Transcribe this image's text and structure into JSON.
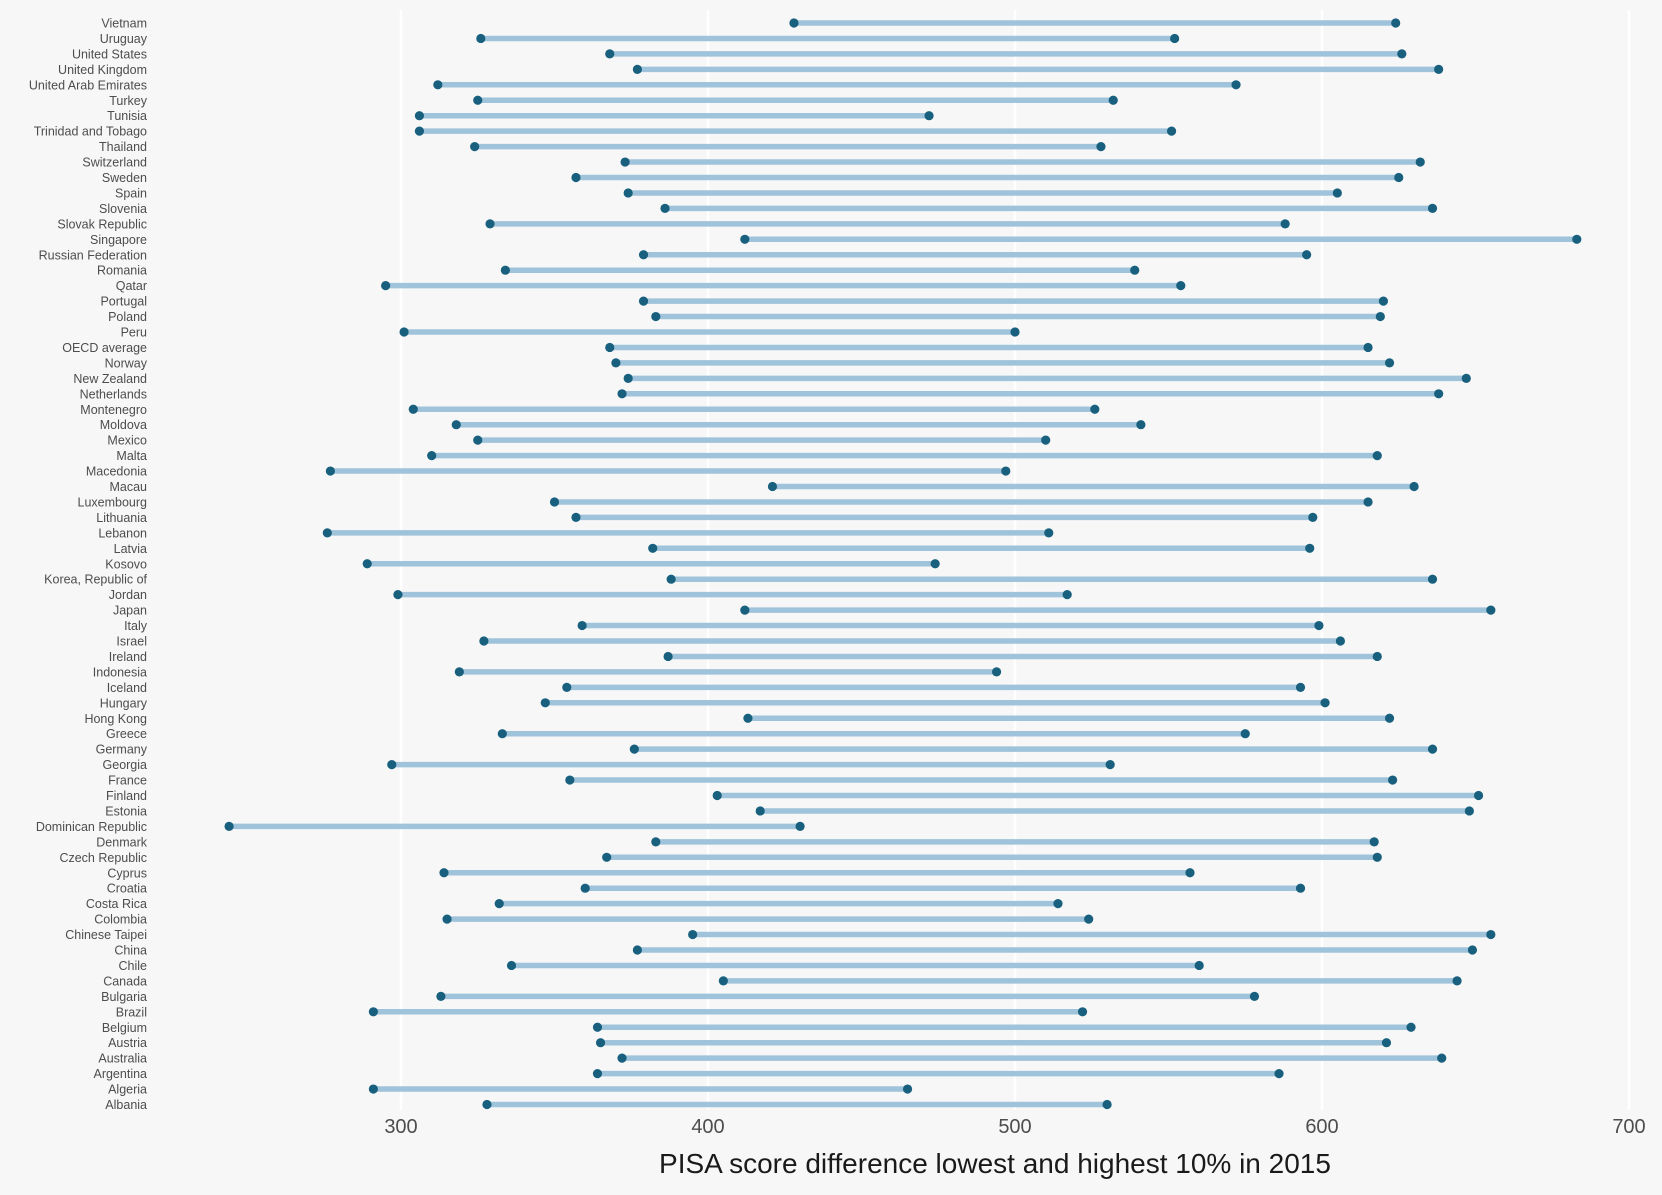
{
  "chart_data": {
    "type": "dumbbell",
    "xlabel": "PISA score difference lowest and highest 10% in 2015",
    "xlim": [
      215,
      700
    ],
    "xticks": [
      300,
      400,
      500,
      600,
      700
    ],
    "grid": true,
    "colors": {
      "segment": "#9ec3da",
      "point": "#19607f",
      "background": "#f7f7f7",
      "grid": "#ffffff"
    },
    "rows": [
      {
        "category": "Vietnam",
        "low": 428,
        "high": 624
      },
      {
        "category": "Uruguay",
        "low": 326,
        "high": 552
      },
      {
        "category": "United States",
        "low": 368,
        "high": 626
      },
      {
        "category": "United Kingdom",
        "low": 377,
        "high": 638
      },
      {
        "category": "United Arab Emirates",
        "low": 312,
        "high": 572
      },
      {
        "category": "Turkey",
        "low": 325,
        "high": 532
      },
      {
        "category": "Tunisia",
        "low": 306,
        "high": 472
      },
      {
        "category": "Trinidad and Tobago",
        "low": 306,
        "high": 551
      },
      {
        "category": "Thailand",
        "low": 324,
        "high": 528
      },
      {
        "category": "Switzerland",
        "low": 373,
        "high": 632
      },
      {
        "category": "Sweden",
        "low": 357,
        "high": 625
      },
      {
        "category": "Spain",
        "low": 374,
        "high": 605
      },
      {
        "category": "Slovenia",
        "low": 386,
        "high": 636
      },
      {
        "category": "Slovak Republic",
        "low": 329,
        "high": 588
      },
      {
        "category": "Singapore",
        "low": 412,
        "high": 683
      },
      {
        "category": "Russian Federation",
        "low": 379,
        "high": 595
      },
      {
        "category": "Romania",
        "low": 334,
        "high": 539
      },
      {
        "category": "Qatar",
        "low": 295,
        "high": 554
      },
      {
        "category": "Portugal",
        "low": 379,
        "high": 620
      },
      {
        "category": "Poland",
        "low": 383,
        "high": 619
      },
      {
        "category": "Peru",
        "low": 301,
        "high": 500
      },
      {
        "category": "OECD average",
        "low": 368,
        "high": 615
      },
      {
        "category": "Norway",
        "low": 370,
        "high": 622
      },
      {
        "category": "New Zealand",
        "low": 374,
        "high": 647
      },
      {
        "category": "Netherlands",
        "low": 372,
        "high": 638
      },
      {
        "category": "Montenegro",
        "low": 304,
        "high": 526
      },
      {
        "category": "Moldova",
        "low": 318,
        "high": 541
      },
      {
        "category": "Mexico",
        "low": 325,
        "high": 510
      },
      {
        "category": "Malta",
        "low": 310,
        "high": 618
      },
      {
        "category": "Macedonia",
        "low": 277,
        "high": 497
      },
      {
        "category": "Macau",
        "low": 421,
        "high": 630
      },
      {
        "category": "Luxembourg",
        "low": 350,
        "high": 615
      },
      {
        "category": "Lithuania",
        "low": 357,
        "high": 597
      },
      {
        "category": "Lebanon",
        "low": 276,
        "high": 511
      },
      {
        "category": "Latvia",
        "low": 382,
        "high": 596
      },
      {
        "category": "Kosovo",
        "low": 289,
        "high": 474
      },
      {
        "category": "Korea, Republic of",
        "low": 388,
        "high": 636
      },
      {
        "category": "Jordan",
        "low": 299,
        "high": 517
      },
      {
        "category": "Japan",
        "low": 412,
        "high": 655
      },
      {
        "category": "Italy",
        "low": 359,
        "high": 599
      },
      {
        "category": "Israel",
        "low": 327,
        "high": 606
      },
      {
        "category": "Ireland",
        "low": 387,
        "high": 618
      },
      {
        "category": "Indonesia",
        "low": 319,
        "high": 494
      },
      {
        "category": "Iceland",
        "low": 354,
        "high": 593
      },
      {
        "category": "Hungary",
        "low": 347,
        "high": 601
      },
      {
        "category": "Hong Kong",
        "low": 413,
        "high": 622
      },
      {
        "category": "Greece",
        "low": 333,
        "high": 575
      },
      {
        "category": "Germany",
        "low": 376,
        "high": 636
      },
      {
        "category": "Georgia",
        "low": 297,
        "high": 531
      },
      {
        "category": "France",
        "low": 355,
        "high": 623
      },
      {
        "category": "Finland",
        "low": 403,
        "high": 651
      },
      {
        "category": "Estonia",
        "low": 417,
        "high": 648
      },
      {
        "category": "Dominican Republic",
        "low": 244,
        "high": 430
      },
      {
        "category": "Denmark",
        "low": 383,
        "high": 617
      },
      {
        "category": "Czech Republic",
        "low": 367,
        "high": 618
      },
      {
        "category": "Cyprus",
        "low": 314,
        "high": 557
      },
      {
        "category": "Croatia",
        "low": 360,
        "high": 593
      },
      {
        "category": "Costa Rica",
        "low": 332,
        "high": 514
      },
      {
        "category": "Colombia",
        "low": 315,
        "high": 524
      },
      {
        "category": "Chinese Taipei",
        "low": 395,
        "high": 655
      },
      {
        "category": "China",
        "low": 377,
        "high": 649
      },
      {
        "category": "Chile",
        "low": 336,
        "high": 560
      },
      {
        "category": "Canada",
        "low": 405,
        "high": 644
      },
      {
        "category": "Bulgaria",
        "low": 313,
        "high": 578
      },
      {
        "category": "Brazil",
        "low": 291,
        "high": 522
      },
      {
        "category": "Belgium",
        "low": 364,
        "high": 629
      },
      {
        "category": "Austria",
        "low": 365,
        "high": 621
      },
      {
        "category": "Australia",
        "low": 372,
        "high": 639
      },
      {
        "category": "Argentina",
        "low": 364,
        "high": 586
      },
      {
        "category": "Algeria",
        "low": 291,
        "high": 465
      },
      {
        "category": "Albania",
        "low": 328,
        "high": 530
      }
    ]
  }
}
